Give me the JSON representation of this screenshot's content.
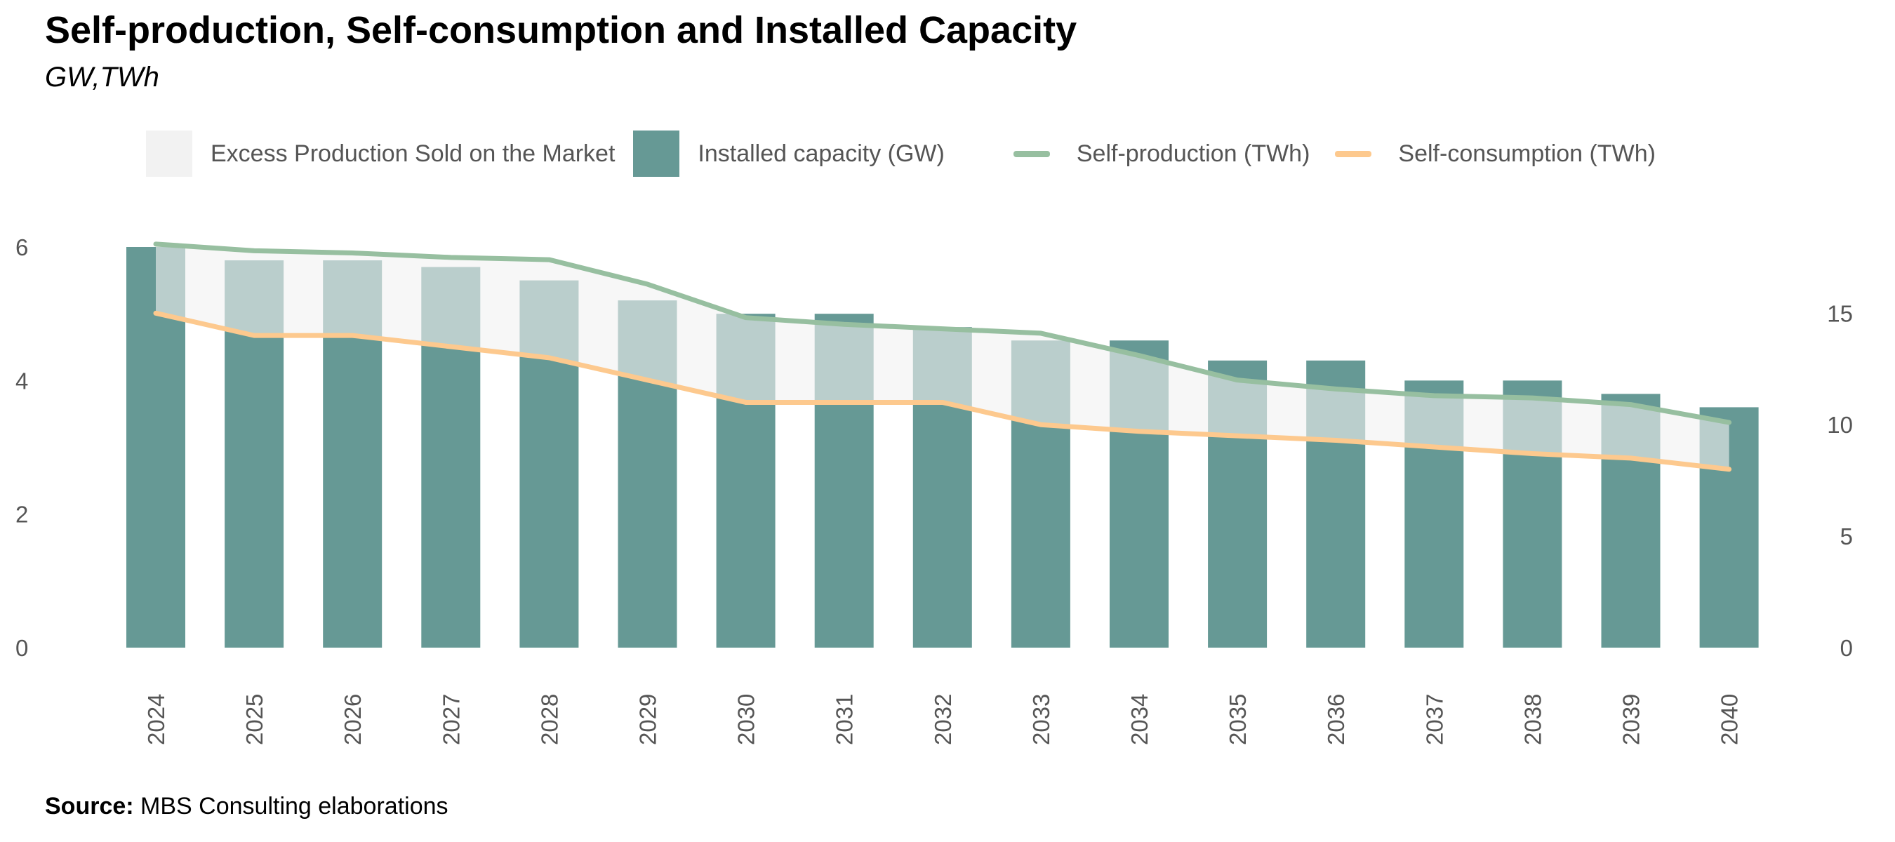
{
  "title": "Self-production, Self-consumption and Installed Capacity",
  "subtitle": "GW,TWh",
  "legend": {
    "excess": "Excess Production Sold on the Market",
    "capacity": "Installed capacity (GW)",
    "self_production": "Self-production (TWh)",
    "self_consumption": "Self-consumption (TWh)"
  },
  "colors": {
    "capacity": "#669995",
    "excess": "#f2f2f2",
    "self_production": "#97bfa0",
    "self_consumption": "#fdc98e"
  },
  "source": {
    "label": "Source:",
    "text": "MBS Consulting elaborations"
  },
  "chart_data": {
    "type": "bar",
    "categories": [
      "2024",
      "2025",
      "2026",
      "2027",
      "2028",
      "2029",
      "2030",
      "2031",
      "2032",
      "2033",
      "2034",
      "2035",
      "2036",
      "2037",
      "2038",
      "2039",
      "2040"
    ],
    "series": [
      {
        "name": "Installed capacity (GW)",
        "type": "bar",
        "axis": "left",
        "values": [
          6.0,
          5.8,
          5.8,
          5.7,
          5.5,
          5.2,
          5.0,
          5.0,
          4.8,
          4.6,
          4.6,
          4.3,
          4.3,
          4.0,
          4.0,
          3.8,
          3.6
        ]
      },
      {
        "name": "Self-production (TWh)",
        "type": "line",
        "axis": "right",
        "values": [
          18.1,
          17.8,
          17.7,
          17.5,
          17.4,
          16.3,
          14.8,
          14.5,
          14.3,
          14.1,
          13.1,
          12.0,
          11.6,
          11.3,
          11.2,
          10.9,
          10.1
        ]
      },
      {
        "name": "Self-consumption (TWh)",
        "type": "line",
        "axis": "right",
        "values": [
          15.0,
          14.0,
          14.0,
          13.5,
          13.0,
          12.0,
          11.0,
          11.0,
          11.0,
          10.0,
          9.7,
          9.5,
          9.3,
          9.0,
          8.7,
          8.5,
          8.0
        ]
      }
    ],
    "area": {
      "name": "Excess Production Sold on the Market",
      "between": [
        "Self-production (TWh)",
        "Self-consumption (TWh)"
      ]
    },
    "left_axis": {
      "ylim": [
        0,
        6
      ],
      "ticks": [
        "0",
        "2",
        "4",
        "6"
      ]
    },
    "right_axis": {
      "ylim": [
        0,
        18
      ],
      "ticks": [
        "0",
        "5",
        "10",
        "15"
      ]
    },
    "grid": false
  }
}
